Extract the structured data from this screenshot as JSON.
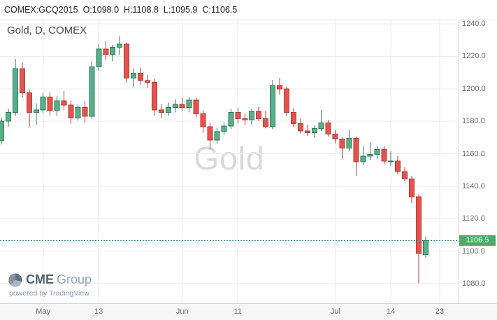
{
  "header": {
    "symbol": "COMEX:GCQ2015",
    "open": "O:1098.0",
    "high": "H:1108.8",
    "low": "L:1095.9",
    "close": "C:1106.5"
  },
  "branding": {
    "logo_primary": "CME",
    "logo_secondary": "Group",
    "powered_by": "powered by TradingView"
  },
  "colors": {
    "up": "#58b089",
    "up_border": "#31795a",
    "down": "#e4544e",
    "down_border": "#b23b37",
    "grid": "#ececec",
    "axis_text": "#6b6b6b",
    "price_line": "#4a9378",
    "badge": "#55a86c"
  },
  "chart_data": {
    "type": "candlestick",
    "title": "Gold, D, COMEX",
    "watermark": "Gold",
    "symbol": "COMEX:GCQ2015",
    "interval": "D",
    "exchange": "COMEX",
    "ylim": [
      1080,
      1240
    ],
    "y_ticks": [
      1080,
      1100,
      1120,
      1140,
      1160,
      1180,
      1200,
      1220,
      1240
    ],
    "x_ticks": [
      {
        "i": 6,
        "label": "May"
      },
      {
        "i": 14,
        "label": "13"
      },
      {
        "i": 26,
        "label": "Jun"
      },
      {
        "i": 34,
        "label": "11"
      },
      {
        "i": 48,
        "label": "Jul"
      },
      {
        "i": 56,
        "label": "14"
      },
      {
        "i": 63,
        "label": "23"
      }
    ],
    "last_price": 1106.5,
    "last_price_label": "1106.5",
    "candles": [
      {
        "d": "Apr 23",
        "o": 1168.0,
        "h": 1182.5,
        "l": 1165.5,
        "c": 1180.0
      },
      {
        "d": "Apr 24",
        "o": 1180.0,
        "h": 1187.5,
        "l": 1176.5,
        "c": 1185.5
      },
      {
        "d": "Apr 27",
        "o": 1185.5,
        "h": 1218.5,
        "l": 1183.0,
        "c": 1212.5
      },
      {
        "d": "Apr 28",
        "o": 1212.5,
        "h": 1216.0,
        "l": 1194.5,
        "c": 1197.5
      },
      {
        "d": "Apr 29",
        "o": 1197.5,
        "h": 1199.5,
        "l": 1176.5,
        "c": 1185.5
      },
      {
        "d": "Apr 30",
        "o": 1185.5,
        "h": 1191.0,
        "l": 1178.0,
        "c": 1187.0
      },
      {
        "d": "May 1",
        "o": 1187.0,
        "h": 1197.5,
        "l": 1185.0,
        "c": 1195.0
      },
      {
        "d": "May 4",
        "o": 1195.0,
        "h": 1198.0,
        "l": 1183.5,
        "c": 1186.5
      },
      {
        "d": "May 5",
        "o": 1186.5,
        "h": 1195.5,
        "l": 1183.0,
        "c": 1192.5
      },
      {
        "d": "May 6",
        "o": 1192.5,
        "h": 1198.5,
        "l": 1187.0,
        "c": 1190.0
      },
      {
        "d": "May 7",
        "o": 1190.0,
        "h": 1192.5,
        "l": 1178.5,
        "c": 1182.0
      },
      {
        "d": "May 8",
        "o": 1182.0,
        "h": 1190.5,
        "l": 1180.5,
        "c": 1188.5
      },
      {
        "d": "May 11",
        "o": 1188.5,
        "h": 1192.5,
        "l": 1179.0,
        "c": 1183.0
      },
      {
        "d": "May 12",
        "o": 1183.0,
        "h": 1217.0,
        "l": 1181.5,
        "c": 1213.5
      },
      {
        "d": "May 13",
        "o": 1213.5,
        "h": 1227.5,
        "l": 1211.0,
        "c": 1224.5
      },
      {
        "d": "May 14",
        "o": 1224.5,
        "h": 1229.5,
        "l": 1217.5,
        "c": 1221.0
      },
      {
        "d": "May 15",
        "o": 1221.0,
        "h": 1227.0,
        "l": 1217.0,
        "c": 1225.5
      },
      {
        "d": "May 18",
        "o": 1225.5,
        "h": 1232.5,
        "l": 1220.5,
        "c": 1227.5
      },
      {
        "d": "May 19",
        "o": 1227.5,
        "h": 1228.5,
        "l": 1203.5,
        "c": 1206.5
      },
      {
        "d": "May 20",
        "o": 1206.5,
        "h": 1212.5,
        "l": 1201.0,
        "c": 1209.5
      },
      {
        "d": "May 21",
        "o": 1209.5,
        "h": 1213.0,
        "l": 1202.5,
        "c": 1205.0
      },
      {
        "d": "May 22",
        "o": 1205.0,
        "h": 1208.5,
        "l": 1200.5,
        "c": 1204.0
      },
      {
        "d": "May 26",
        "o": 1204.0,
        "h": 1206.0,
        "l": 1183.5,
        "c": 1187.0
      },
      {
        "d": "May 27",
        "o": 1187.0,
        "h": 1190.5,
        "l": 1182.0,
        "c": 1185.5
      },
      {
        "d": "May 28",
        "o": 1185.5,
        "h": 1191.5,
        "l": 1183.5,
        "c": 1188.5
      },
      {
        "d": "May 29",
        "o": 1188.5,
        "h": 1193.5,
        "l": 1185.5,
        "c": 1190.5
      },
      {
        "d": "Jun 1",
        "o": 1190.5,
        "h": 1194.5,
        "l": 1186.0,
        "c": 1188.5
      },
      {
        "d": "Jun 2",
        "o": 1188.5,
        "h": 1195.0,
        "l": 1185.5,
        "c": 1193.0
      },
      {
        "d": "Jun 3",
        "o": 1193.0,
        "h": 1194.5,
        "l": 1182.5,
        "c": 1184.5
      },
      {
        "d": "Jun 4",
        "o": 1184.5,
        "h": 1186.5,
        "l": 1173.0,
        "c": 1176.5
      },
      {
        "d": "Jun 5",
        "o": 1176.5,
        "h": 1179.5,
        "l": 1162.5,
        "c": 1168.5
      },
      {
        "d": "Jun 8",
        "o": 1168.5,
        "h": 1176.0,
        "l": 1166.0,
        "c": 1173.5
      },
      {
        "d": "Jun 9",
        "o": 1173.5,
        "h": 1179.5,
        "l": 1171.5,
        "c": 1177.0
      },
      {
        "d": "Jun 10",
        "o": 1177.0,
        "h": 1187.5,
        "l": 1175.0,
        "c": 1185.5
      },
      {
        "d": "Jun 11",
        "o": 1185.5,
        "h": 1188.5,
        "l": 1178.5,
        "c": 1181.5
      },
      {
        "d": "Jun 12",
        "o": 1181.5,
        "h": 1184.5,
        "l": 1177.5,
        "c": 1181.0
      },
      {
        "d": "Jun 15",
        "o": 1181.0,
        "h": 1187.5,
        "l": 1178.0,
        "c": 1186.0
      },
      {
        "d": "Jun 16",
        "o": 1186.0,
        "h": 1189.0,
        "l": 1180.0,
        "c": 1181.5
      },
      {
        "d": "Jun 17",
        "o": 1181.5,
        "h": 1186.5,
        "l": 1175.5,
        "c": 1176.5
      },
      {
        "d": "Jun 18",
        "o": 1176.5,
        "h": 1205.5,
        "l": 1175.0,
        "c": 1202.0
      },
      {
        "d": "Jun 19",
        "o": 1202.0,
        "h": 1206.5,
        "l": 1196.5,
        "c": 1200.0
      },
      {
        "d": "Jun 22",
        "o": 1200.0,
        "h": 1201.5,
        "l": 1183.0,
        "c": 1185.5
      },
      {
        "d": "Jun 23",
        "o": 1185.5,
        "h": 1188.0,
        "l": 1176.5,
        "c": 1178.5
      },
      {
        "d": "Jun 24",
        "o": 1178.5,
        "h": 1181.5,
        "l": 1172.5,
        "c": 1174.0
      },
      {
        "d": "Jun 25",
        "o": 1174.0,
        "h": 1178.0,
        "l": 1171.0,
        "c": 1173.0
      },
      {
        "d": "Jun 26",
        "o": 1173.0,
        "h": 1177.5,
        "l": 1170.0,
        "c": 1175.5
      },
      {
        "d": "Jun 29",
        "o": 1175.5,
        "h": 1187.0,
        "l": 1174.0,
        "c": 1179.0
      },
      {
        "d": "Jun 30",
        "o": 1179.0,
        "h": 1181.0,
        "l": 1170.5,
        "c": 1172.0
      },
      {
        "d": "Jul 1",
        "o": 1172.0,
        "h": 1174.5,
        "l": 1166.5,
        "c": 1169.0
      },
      {
        "d": "Jul 2",
        "o": 1169.0,
        "h": 1170.0,
        "l": 1156.5,
        "c": 1163.5
      },
      {
        "d": "Jul 6",
        "o": 1163.5,
        "h": 1174.5,
        "l": 1162.0,
        "c": 1169.5
      },
      {
        "d": "Jul 7",
        "o": 1169.5,
        "h": 1170.5,
        "l": 1146.5,
        "c": 1155.0
      },
      {
        "d": "Jul 8",
        "o": 1155.0,
        "h": 1164.5,
        "l": 1153.0,
        "c": 1158.5
      },
      {
        "d": "Jul 9",
        "o": 1158.5,
        "h": 1167.0,
        "l": 1156.0,
        "c": 1159.5
      },
      {
        "d": "Jul 10",
        "o": 1159.5,
        "h": 1164.5,
        "l": 1157.0,
        "c": 1162.5
      },
      {
        "d": "Jul 13",
        "o": 1162.5,
        "h": 1164.5,
        "l": 1153.5,
        "c": 1155.5
      },
      {
        "d": "Jul 14",
        "o": 1155.5,
        "h": 1161.5,
        "l": 1152.5,
        "c": 1155.5
      },
      {
        "d": "Jul 15",
        "o": 1155.5,
        "h": 1158.5,
        "l": 1147.0,
        "c": 1149.0
      },
      {
        "d": "Jul 16",
        "o": 1149.0,
        "h": 1151.5,
        "l": 1143.0,
        "c": 1144.5
      },
      {
        "d": "Jul 17",
        "o": 1144.5,
        "h": 1146.5,
        "l": 1129.5,
        "c": 1133.5
      },
      {
        "d": "Jul 20",
        "o": 1133.5,
        "h": 1135.0,
        "l": 1080.0,
        "c": 1098.5
      },
      {
        "d": "Jul 21",
        "o": 1098.0,
        "h": 1108.8,
        "l": 1095.9,
        "c": 1106.5
      }
    ]
  }
}
